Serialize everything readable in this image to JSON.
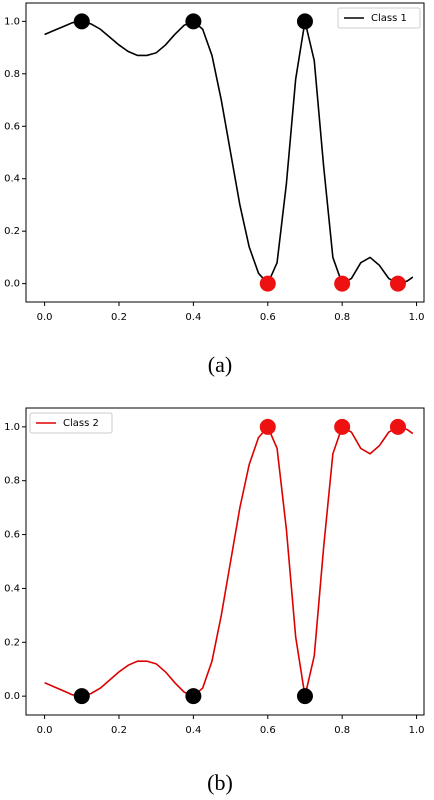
{
  "chart_data": [
    {
      "type": "line",
      "caption": "(a)",
      "legend": "upper right",
      "series": [
        {
          "name": "Class 1",
          "color": "#000000",
          "x": [
            0,
            0.025,
            0.05,
            0.075,
            0.1,
            0.125,
            0.15,
            0.175,
            0.2,
            0.225,
            0.25,
            0.275,
            0.3,
            0.325,
            0.35,
            0.375,
            0.4,
            0.425,
            0.45,
            0.475,
            0.5,
            0.525,
            0.55,
            0.575,
            0.6,
            0.625,
            0.65,
            0.675,
            0.7,
            0.725,
            0.75,
            0.775,
            0.8,
            0.825,
            0.85,
            0.875,
            0.9,
            0.925,
            0.95,
            0.975,
            0.99
          ],
          "values": [
            0.95,
            0.965,
            0.98,
            0.995,
            1.0,
            0.99,
            0.97,
            0.94,
            0.91,
            0.885,
            0.87,
            0.87,
            0.88,
            0.91,
            0.95,
            0.985,
            1.0,
            0.97,
            0.87,
            0.7,
            0.5,
            0.3,
            0.14,
            0.04,
            0.0,
            0.08,
            0.38,
            0.78,
            1.0,
            0.85,
            0.45,
            0.1,
            0.0,
            0.02,
            0.08,
            0.1,
            0.07,
            0.02,
            0.0,
            0.01,
            0.025
          ]
        }
      ],
      "points": {
        "x": [
          0.1,
          0.4,
          0.7,
          0.6,
          0.8,
          0.95
        ],
        "y": [
          1,
          1,
          1,
          0,
          0,
          0
        ],
        "colors": [
          "#000000",
          "#000000",
          "#000000",
          "#ee1111",
          "#ee1111",
          "#ee1111"
        ]
      },
      "xlim": [
        -0.05,
        1.02
      ],
      "ylim": [
        -0.07,
        1.07
      ],
      "xticks": [
        {
          "value": 0,
          "label": "0.0"
        },
        0.2,
        0.4,
        0.6,
        0.8,
        {
          "value": 1,
          "label": "1.0"
        }
      ],
      "yticks": [
        {
          "value": 0,
          "label": "0.0"
        },
        0.2,
        0.4,
        0.6,
        0.8,
        {
          "value": 1,
          "label": "1.0"
        }
      ]
    },
    {
      "type": "line",
      "caption": "(b)",
      "legend": "upper left",
      "series": [
        {
          "name": "Class 2",
          "color": "#dd0000",
          "x": [
            0,
            0.025,
            0.05,
            0.075,
            0.1,
            0.125,
            0.15,
            0.175,
            0.2,
            0.225,
            0.25,
            0.275,
            0.3,
            0.325,
            0.35,
            0.375,
            0.4,
            0.425,
            0.45,
            0.475,
            0.5,
            0.525,
            0.55,
            0.575,
            0.6,
            0.625,
            0.65,
            0.675,
            0.7,
            0.725,
            0.75,
            0.775,
            0.8,
            0.825,
            0.85,
            0.875,
            0.9,
            0.925,
            0.95,
            0.975,
            0.99
          ],
          "values": [
            0.05,
            0.035,
            0.02,
            0.005,
            0.0,
            0.01,
            0.03,
            0.06,
            0.09,
            0.115,
            0.13,
            0.13,
            0.12,
            0.09,
            0.05,
            0.015,
            0.0,
            0.03,
            0.13,
            0.3,
            0.5,
            0.7,
            0.86,
            0.96,
            1.0,
            0.92,
            0.62,
            0.22,
            0.0,
            0.15,
            0.55,
            0.9,
            1.0,
            0.98,
            0.92,
            0.9,
            0.93,
            0.98,
            1.0,
            0.99,
            0.975
          ]
        }
      ],
      "points": {
        "x": [
          0.1,
          0.4,
          0.7,
          0.6,
          0.8,
          0.95
        ],
        "y": [
          0,
          0,
          0,
          1,
          1,
          1
        ],
        "colors": [
          "#000000",
          "#000000",
          "#000000",
          "#ee1111",
          "#ee1111",
          "#ee1111"
        ]
      },
      "xlim": [
        -0.05,
        1.02
      ],
      "ylim": [
        -0.07,
        1.07
      ],
      "xticks": [
        {
          "value": 0,
          "label": "0.0"
        },
        0.2,
        0.4,
        0.6,
        0.8,
        {
          "value": 1,
          "label": "1.0"
        }
      ],
      "yticks": [
        {
          "value": 0,
          "label": "0.0"
        },
        0.2,
        0.4,
        0.6,
        0.8,
        {
          "value": 1,
          "label": "1.0"
        }
      ]
    }
  ]
}
